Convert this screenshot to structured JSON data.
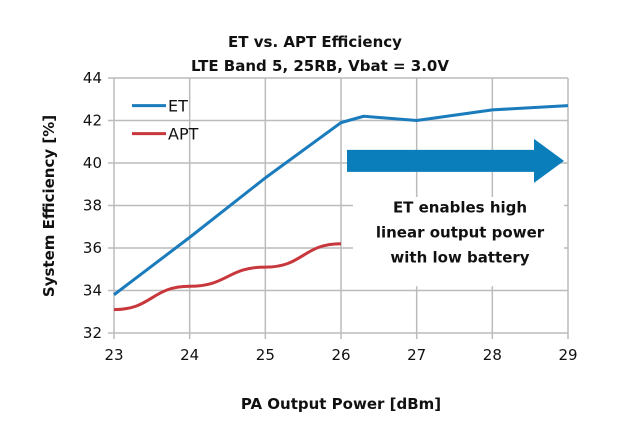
{
  "chart_data": {
    "type": "line",
    "title": "ET vs. APT Efficiency",
    "subtitle": "LTE Band 5, 25RB, Vbat = 3.0V",
    "xlabel": "PA Output Power [dBm]",
    "ylabel": "System Efficiency [%]",
    "xlim": [
      23,
      29
    ],
    "ylim": [
      32,
      44
    ],
    "xticks": [
      23,
      24,
      25,
      26,
      27,
      28,
      29
    ],
    "yticks": [
      32,
      34,
      36,
      38,
      40,
      42,
      44
    ],
    "grid": true,
    "legend": "top-left",
    "series": [
      {
        "name": "ET",
        "color": "#1a7bbd",
        "x": [
          23,
          24,
          25,
          26,
          26.3,
          27,
          28,
          29
        ],
        "y": [
          33.8,
          36.5,
          39.3,
          41.9,
          42.2,
          42.0,
          42.5,
          42.7
        ]
      },
      {
        "name": "APT",
        "color": "#c8373b",
        "x": [
          23,
          24,
          25,
          26
        ],
        "y": [
          33.1,
          34.2,
          35.1,
          36.2
        ]
      }
    ],
    "annotation": {
      "lines": [
        "ET enables high",
        "linear output power",
        "with low battery"
      ],
      "arrow_color": "#0a7dbb",
      "arrow_from_x": 26,
      "arrow_to_x": 29
    }
  }
}
